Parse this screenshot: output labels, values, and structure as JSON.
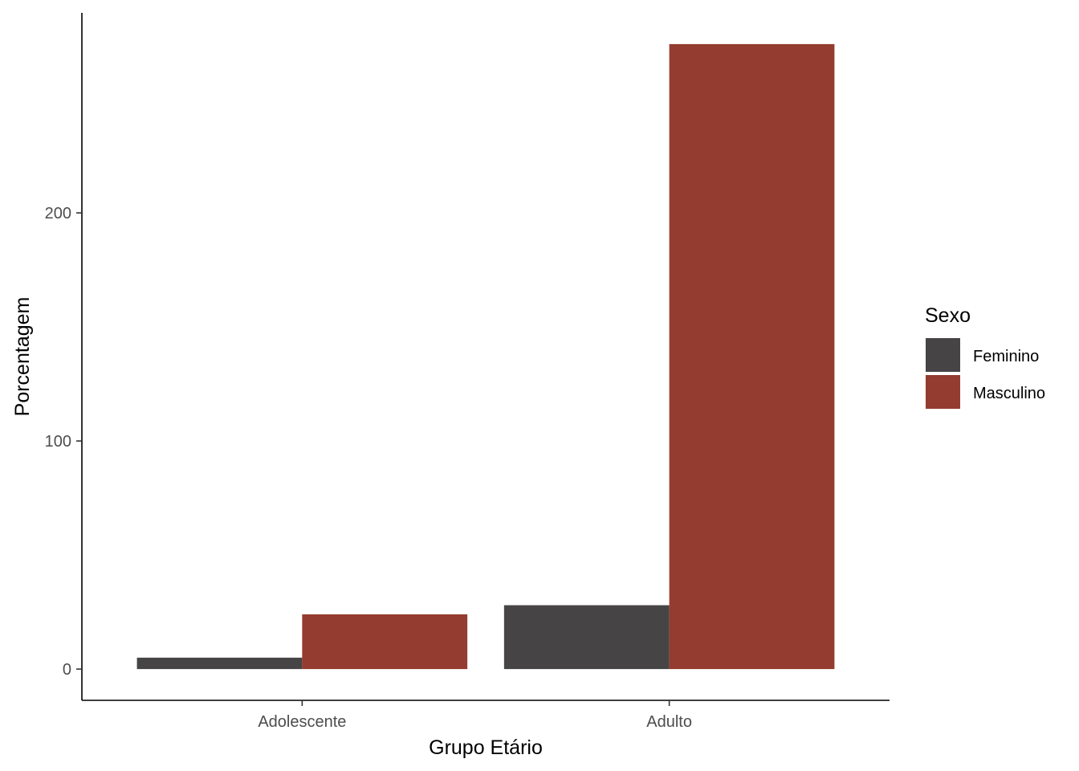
{
  "chart_data": {
    "type": "bar",
    "title": "",
    "xlabel": "Grupo Etário",
    "ylabel": "Porcentagem",
    "categories": [
      "Adolescente",
      "Adulto"
    ],
    "series": [
      {
        "name": "Feminino",
        "color": "#474445",
        "values": [
          5,
          28
        ]
      },
      {
        "name": "Masculino",
        "color": "#943c2f",
        "values": [
          24,
          274
        ]
      }
    ],
    "yticks": [
      0,
      100,
      200
    ],
    "ylim": [
      -13.7,
      287.7
    ],
    "grid": false,
    "legend": {
      "title": "Sexo",
      "position": "right"
    }
  }
}
